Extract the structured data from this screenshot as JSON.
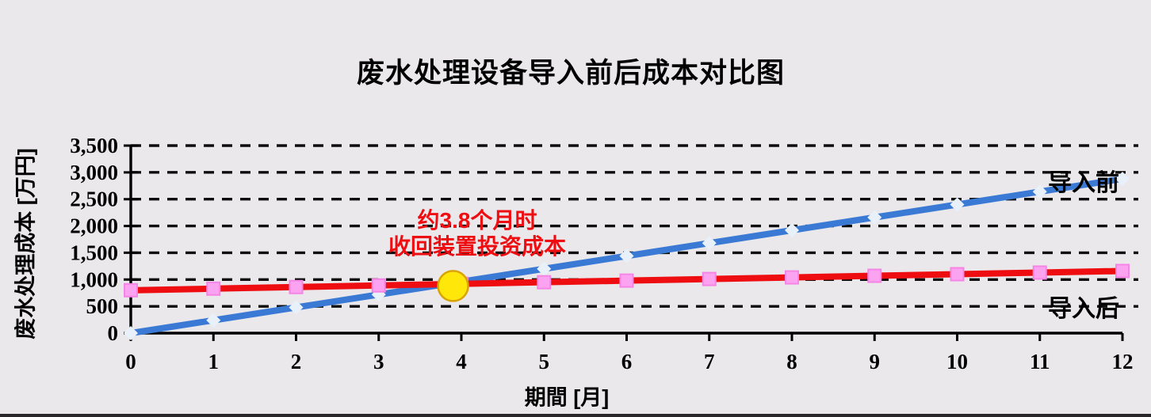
{
  "title": "废水处理设备导入前后成本对比图",
  "colors": {
    "background": "#EAE8EB",
    "grid": "#0D0D0D",
    "axis": "#000000",
    "annotation_text": "#EE0E12",
    "bottom_border": "#29272A"
  },
  "chart_data": {
    "type": "line",
    "title": "废水处理设备导入前后成本对比图",
    "xlabel": "期間 [月]",
    "ylabel": "废水处理成本 [万円]",
    "xlim": [
      0,
      12
    ],
    "ylim": [
      0,
      3500
    ],
    "grid": "horizontal-dashed",
    "legend_position": "right-inline",
    "x": [
      0,
      1,
      2,
      3,
      4,
      5,
      6,
      7,
      8,
      9,
      10,
      11,
      12
    ],
    "xtick_labels": [
      "0",
      "1",
      "2",
      "3",
      "4",
      "5",
      "6",
      "7",
      "8",
      "9",
      "10",
      "11",
      "12"
    ],
    "yticks": [
      0,
      500,
      1000,
      1500,
      2000,
      2500,
      3000,
      3500
    ],
    "ytick_labels": [
      "0",
      "500",
      "1,000",
      "1,500",
      "2,000",
      "2,500",
      "3,000",
      "3,500"
    ],
    "series": [
      {
        "name": "导入前",
        "color": "#3A7AD5",
        "marker": "diamond",
        "marker_fill": "#E8F0FA",
        "values": [
          0,
          240,
          480,
          720,
          960,
          1200,
          1440,
          1680,
          1920,
          2160,
          2400,
          2640,
          2880
        ]
      },
      {
        "name": "导入后",
        "color": "#EE0E12",
        "marker": "square",
        "marker_fill": "#FBA2F0",
        "marker_border": "#F585E5",
        "values": [
          800,
          830,
          860,
          890,
          920,
          950,
          980,
          1010,
          1040,
          1070,
          1100,
          1130,
          1160
        ]
      }
    ],
    "annotation": {
      "line1": "约3.8个月时",
      "line2": "收回装置投资成本",
      "payback_months": 3.8,
      "marker_point": {
        "x": 3.9,
        "y": 880
      },
      "marker_fill": "#FFE70A",
      "marker_border": "#D9A300"
    }
  }
}
